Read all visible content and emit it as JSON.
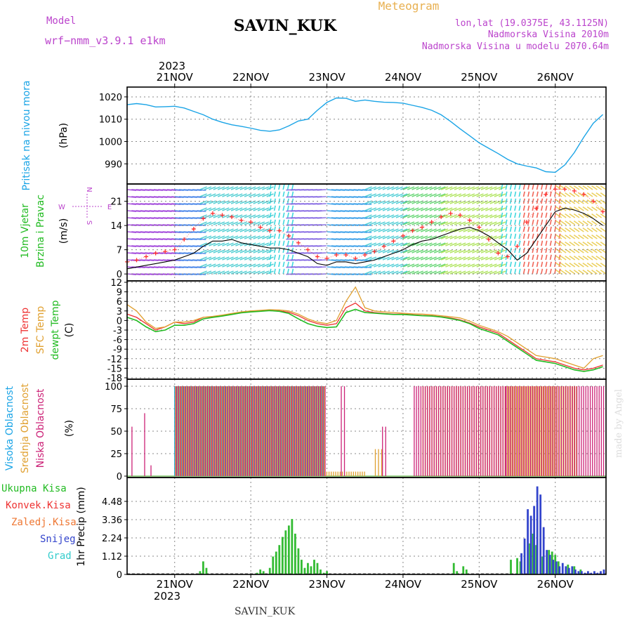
{
  "header": {
    "model_label": "Model",
    "model_name": "wrf−nmm_v3.9.1  e1km",
    "station": "SAVIN_KUK",
    "meteogram": "Meteogram",
    "lonlat": "lon,lat (19.0375E, 43.1125N)",
    "elevation": "Nadmorska Visina 2010m",
    "model_elevation": "Nadmorska Visina u modelu 2070.64m"
  },
  "footer": {
    "station": "SAVIN_KUK",
    "credit": "made by Angel"
  },
  "time_axis": {
    "year": "2023",
    "days": [
      "21NOV",
      "22NOV",
      "23NOV",
      "24NOV",
      "25NOV",
      "26NOV"
    ]
  },
  "colors": {
    "pressure": "#1aa4e6",
    "wind_speed": "#000000",
    "gust": "#ff3030",
    "t2m": "#ee3333",
    "sfc": "#e0a030",
    "dew": "#22bb22",
    "high_cloud": "#1aa4e6",
    "mid_cloud": "#e0a030",
    "low_cloud": "#cc2277",
    "precip_total": "#33bb33",
    "precip_snow": "#3344cc",
    "frame": "#000000",
    "grid": "#888888"
  },
  "chart_data": [
    {
      "type": "line",
      "panel": "pressure",
      "ylabel": [
        "Pritisak na nivou mora",
        "(hPa)"
      ],
      "yticks": [
        990,
        1000,
        1010,
        1020
      ],
      "ylim": [
        983.5,
        1022.5
      ],
      "x_unit": "hours from 2023-11-21 00:00 UTC",
      "x": [
        -15,
        -12,
        -9,
        -6,
        -3,
        0,
        3,
        6,
        9,
        12,
        15,
        18,
        21,
        24,
        27,
        30,
        33,
        36,
        39,
        42,
        45,
        48,
        51,
        54,
        57,
        60,
        63,
        66,
        69,
        72,
        75,
        78,
        81,
        84,
        87,
        90,
        93,
        96,
        99,
        102,
        105,
        108,
        111,
        114,
        117,
        120,
        123,
        126,
        129,
        132,
        135
      ],
      "series": [
        {
          "values": [
            1016.5,
            1017,
            1016.5,
            1015.5,
            1015.6,
            1015.8,
            1015,
            1013.5,
            1012,
            1010,
            1008.6,
            1007.5,
            1006.8,
            1006,
            1005,
            1004.6,
            1005.2,
            1007,
            1009.2,
            1010,
            1014,
            1017.5,
            1019.5,
            1019.4,
            1018,
            1018.6,
            1018,
            1017.6,
            1017.5,
            1017.2,
            1016.2,
            1015.3,
            1014,
            1012,
            1009,
            1005.7,
            1002.6,
            999.4,
            997,
            994.6,
            992,
            990,
            989,
            988.2,
            986.5,
            986.2,
            989.5,
            995,
            1002,
            1008.2,
            1012.1
          ]
        }
      ]
    },
    {
      "type": "line",
      "panel": "wind",
      "ylabel": [
        "10m Vjetar",
        "Brzina i Pravac",
        "(m/s)"
      ],
      "compass": {
        "north": "N",
        "south": "S",
        "west": "W",
        "east": "E"
      },
      "yticks": [
        0,
        7,
        14,
        21
      ],
      "ylim": [
        -2,
        26
      ],
      "x": [
        -15,
        -12,
        -9,
        -6,
        -3,
        0,
        3,
        6,
        9,
        12,
        15,
        18,
        21,
        24,
        27,
        30,
        33,
        36,
        39,
        42,
        45,
        48,
        51,
        54,
        57,
        60,
        63,
        66,
        69,
        72,
        75,
        78,
        81,
        84,
        87,
        90,
        93,
        96,
        99,
        102,
        105,
        108,
        111,
        114,
        117,
        120,
        123,
        126,
        129,
        132,
        135
      ],
      "series": [
        {
          "name": "wind speed",
          "values": [
            1.5,
            2,
            2.5,
            3,
            3.5,
            4,
            5,
            6,
            8,
            9.5,
            9.5,
            10,
            9,
            8.5,
            8,
            7.5,
            7.5,
            7,
            6,
            5,
            3,
            2.5,
            3.5,
            3.5,
            3,
            3.5,
            4,
            5,
            6,
            7,
            8.5,
            9.5,
            10,
            11,
            12,
            13,
            13.5,
            12.5,
            11,
            9,
            7,
            4,
            6,
            10,
            14,
            18,
            19,
            18.5,
            17.5,
            16,
            14
          ]
        },
        {
          "name": "gust",
          "values": [
            3.5,
            4,
            5,
            6,
            6.5,
            7,
            10,
            13,
            16,
            17.5,
            17,
            16.5,
            15.5,
            15,
            13.5,
            12.5,
            12.5,
            11,
            9,
            7,
            5,
            4.5,
            5.5,
            5.5,
            4.5,
            5.5,
            6.5,
            8,
            9.5,
            11,
            12.5,
            13.5,
            15,
            16.5,
            17.5,
            17,
            15.5,
            13.5,
            10,
            6,
            5,
            8,
            15,
            19,
            23,
            24.5,
            24.5,
            24,
            23,
            21,
            18
          ]
        }
      ],
      "arrow_regimes": [
        {
          "until": 0,
          "color": "#9a3ad8",
          "dir": "E"
        },
        {
          "until": 8,
          "color": "#3f7fe8",
          "dir": "E"
        },
        {
          "until": 30,
          "color": "#38c8cc",
          "dir": "NE"
        },
        {
          "until": 38,
          "color": "#1fd0d8",
          "dir": "N"
        },
        {
          "until": 48,
          "color": "#7a5ce0",
          "dir": "W"
        },
        {
          "until": 60,
          "color": "#2f9ae8",
          "dir": "E"
        },
        {
          "until": 72,
          "color": "#38c8d0",
          "dir": "NE"
        },
        {
          "until": 84,
          "color": "#50d060",
          "dir": "NE"
        },
        {
          "until": 103,
          "color": "#a4e048",
          "dir": "NE"
        },
        {
          "until": 110,
          "color": "#1fd0d8",
          "dir": "N"
        },
        {
          "until": 122,
          "color": "#ee4a3a",
          "dir": "N"
        },
        {
          "until": 137,
          "color": "#e8c840",
          "dir": "NW"
        }
      ]
    },
    {
      "type": "line",
      "panel": "temperature",
      "ylabel": [
        "2m Temp",
        "SFC Temp",
        "dewpt Temp",
        "(C)"
      ],
      "yticks": [
        -18,
        -15,
        -12,
        -9,
        -6,
        -3,
        0,
        3,
        6,
        9,
        12
      ],
      "ylim": [
        -18,
        12
      ],
      "x": [
        -15,
        -12,
        -9,
        -6,
        -3,
        0,
        3,
        6,
        9,
        12,
        15,
        18,
        21,
        24,
        27,
        30,
        33,
        36,
        39,
        42,
        45,
        48,
        51,
        54,
        57,
        60,
        63,
        66,
        69,
        72,
        75,
        78,
        81,
        84,
        87,
        90,
        93,
        96,
        99,
        102,
        105,
        108,
        111,
        114,
        117,
        120,
        123,
        126,
        129,
        132,
        135
      ],
      "series": [
        {
          "name": "2m Temp",
          "values": [
            2,
            1,
            -1,
            -3,
            -2,
            -0.5,
            -1,
            -0.5,
            1,
            1.2,
            1.5,
            2,
            2.5,
            2.8,
            3,
            3.2,
            3,
            2.6,
            1.5,
            0,
            -1,
            -1.5,
            -1,
            4,
            5.5,
            3,
            2.5,
            2.2,
            2,
            2,
            1.8,
            1.6,
            1.5,
            1.2,
            0.8,
            0.2,
            -0.8,
            -2,
            -3,
            -4,
            -6,
            -8,
            -10,
            -12,
            -12.5,
            -13,
            -14,
            -15,
            -15.5,
            -15,
            -14
          ]
        },
        {
          "name": "SFC Temp",
          "values": [
            5,
            3,
            -0.5,
            -2.5,
            -2,
            -0.5,
            -0.5,
            0,
            1,
            1.3,
            1.7,
            2.2,
            2.7,
            3,
            3.2,
            3.4,
            3.3,
            3,
            2,
            0.5,
            -0.5,
            -1,
            0,
            6,
            10.5,
            4,
            3,
            2.7,
            2.5,
            2.3,
            2.1,
            2,
            1.8,
            1.5,
            1.2,
            0.8,
            -0.2,
            -1.5,
            -2.5,
            -3.5,
            -5,
            -7,
            -9,
            -11,
            -11.5,
            -12,
            -13,
            -14,
            -15,
            -12,
            -11
          ]
        },
        {
          "name": "dewpt Temp",
          "values": [
            1,
            0,
            -2,
            -3.5,
            -3,
            -1.5,
            -1.5,
            -1,
            0.5,
            1,
            1.4,
            1.9,
            2.4,
            2.7,
            2.9,
            3.1,
            2.9,
            2.2,
            0.5,
            -1,
            -1.8,
            -2.2,
            -2,
            2.5,
            3.5,
            2.5,
            2.3,
            2.1,
            1.9,
            1.9,
            1.7,
            1.5,
            1.4,
            1.1,
            0.6,
            0,
            -1,
            -2.5,
            -3.5,
            -4.5,
            -6.5,
            -8.5,
            -10.5,
            -12.5,
            -13,
            -13.5,
            -14.5,
            -15.5,
            -16,
            -15.5,
            -14.5
          ]
        }
      ]
    },
    {
      "type": "bar",
      "panel": "clouds",
      "ylabel": [
        "Visoka Oblacnost",
        "Srednja Oblacnost",
        "Niska Oblacnost",
        "(%)"
      ],
      "yticks": [
        0,
        25,
        50,
        75,
        100
      ],
      "ylim": [
        0,
        100
      ],
      "series": [
        {
          "name": "Visoka Oblacnost",
          "ranges": [
            [
              0,
              47,
              100
            ],
            [
              75,
              110,
              0
            ]
          ]
        },
        {
          "name": "Srednja Oblacnost",
          "ranges": [
            [
              0,
              47,
              100
            ],
            [
              47,
              60,
              5
            ],
            [
              63,
              66,
              30
            ],
            [
              78,
              104,
              100
            ],
            [
              104,
              127,
              100
            ]
          ]
        },
        {
          "name": "Niska Oblacnost",
          "ranges": [
            [
              -14,
              -13,
              55
            ],
            [
              -10,
              -9,
              70
            ],
            [
              -8,
              -7,
              12
            ],
            [
              0,
              47,
              100
            ],
            [
              52,
              54,
              100
            ],
            [
              65,
              67,
              55
            ],
            [
              75,
              104,
              100
            ],
            [
              104,
              120,
              100
            ],
            [
              120,
              135,
              100
            ]
          ]
        }
      ]
    },
    {
      "type": "bar",
      "panel": "precip",
      "ylabel": [
        "1hr Precip (mm)"
      ],
      "legend": [
        "Ukupna Kisa",
        "Konvek.Kisa",
        "Zaledj.Kisa",
        "Snijeg",
        "Grad"
      ],
      "yticks": [
        0,
        1.12,
        2.24,
        3.36,
        4.48
      ],
      "ylim": [
        0,
        5.6
      ],
      "series": [
        {
          "name": "Ukupna Kisa",
          "x": [
            8,
            9,
            10,
            26,
            27,
            28,
            30,
            31,
            32,
            33,
            34,
            35,
            36,
            37,
            38,
            39,
            40,
            41,
            42,
            43,
            44,
            45,
            46,
            47,
            48,
            88,
            89,
            91,
            92,
            106,
            108,
            109,
            112,
            113,
            114,
            116,
            118,
            119,
            120,
            121,
            124,
            126,
            128
          ],
          "values": [
            0.2,
            0.8,
            0.4,
            0.1,
            0.3,
            0.2,
            0.4,
            1.1,
            1.4,
            1.8,
            2.3,
            2.7,
            3.0,
            3.4,
            2.5,
            1.6,
            0.9,
            0.4,
            0.7,
            0.5,
            0.9,
            0.7,
            0.3,
            0.1,
            0.2,
            0.7,
            0.2,
            0.5,
            0.3,
            0.9,
            1.0,
            0.8,
            1.9,
            2.5,
            1.8,
            1.1,
            1.5,
            1.4,
            1.2,
            0.8,
            0.6,
            0.5,
            0.3
          ]
        },
        {
          "name": "Snijeg",
          "x": [
            109,
            110,
            111,
            112,
            113,
            114,
            115,
            116,
            117,
            118,
            119,
            120,
            121,
            122,
            123,
            124,
            125,
            126,
            127,
            128,
            129,
            130,
            131,
            132,
            133,
            134,
            135
          ],
          "values": [
            1.3,
            2.2,
            4.0,
            3.6,
            4.2,
            5.4,
            4.9,
            2.9,
            1.5,
            1.2,
            0.9,
            0.8,
            0.5,
            0.7,
            0.5,
            0.4,
            0.5,
            0.3,
            0.2,
            0.2,
            0.1,
            0.2,
            0.1,
            0.2,
            0.1,
            0.2,
            0.3
          ]
        }
      ]
    }
  ]
}
